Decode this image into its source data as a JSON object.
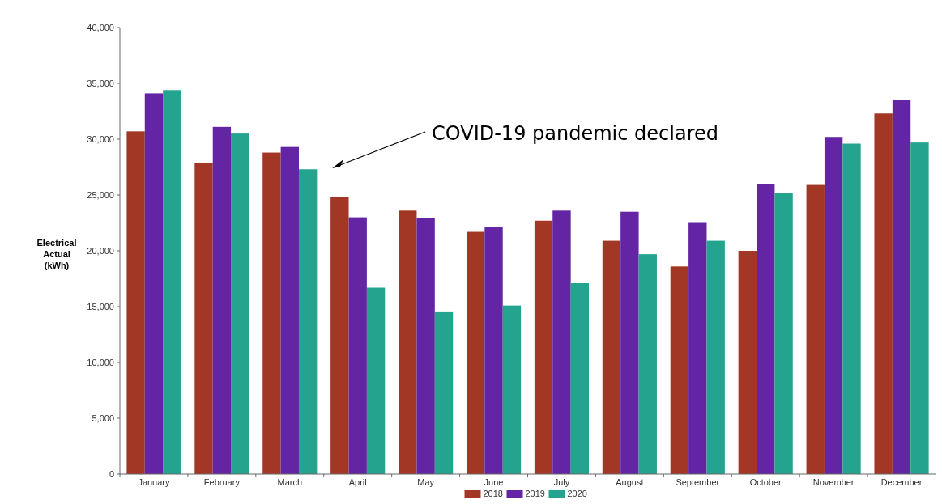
{
  "chart_data": {
    "type": "bar",
    "ylabel": "Electrical Actual (kWh)",
    "categories": [
      "January",
      "February",
      "March",
      "April",
      "May",
      "June",
      "July",
      "August",
      "September",
      "October",
      "November",
      "December"
    ],
    "series": [
      {
        "name": "2018",
        "color": "#a33726",
        "values": [
          30700,
          27900,
          28800,
          24800,
          23600,
          21700,
          22700,
          20900,
          18600,
          20000,
          25900,
          32300
        ]
      },
      {
        "name": "2019",
        "color": "#6325a3",
        "values": [
          34100,
          31100,
          29300,
          23000,
          22900,
          22100,
          23600,
          23500,
          22500,
          26000,
          30200,
          33500
        ]
      },
      {
        "name": "2020",
        "color": "#24a38f",
        "values": [
          34400,
          30500,
          27300,
          16700,
          14500,
          15100,
          17100,
          19700,
          20900,
          25200,
          29600,
          29700
        ]
      }
    ],
    "ylim": [
      0,
      40000
    ],
    "yticks": [
      {
        "value": 0,
        "label": "0"
      },
      {
        "value": 5000,
        "label": "5,000"
      },
      {
        "value": 10000,
        "label": "10,000"
      },
      {
        "value": 15000,
        "label": "15,000"
      },
      {
        "value": 20000,
        "label": "20,000"
      },
      {
        "value": 25000,
        "label": "25,000"
      },
      {
        "value": 30000,
        "label": "30,000"
      },
      {
        "value": 35000,
        "label": "35,000"
      },
      {
        "value": 40000,
        "label": "40,000"
      }
    ],
    "legend": "bottom",
    "grid": false,
    "annotations": [
      "COVID-19 pandemic declared"
    ]
  }
}
